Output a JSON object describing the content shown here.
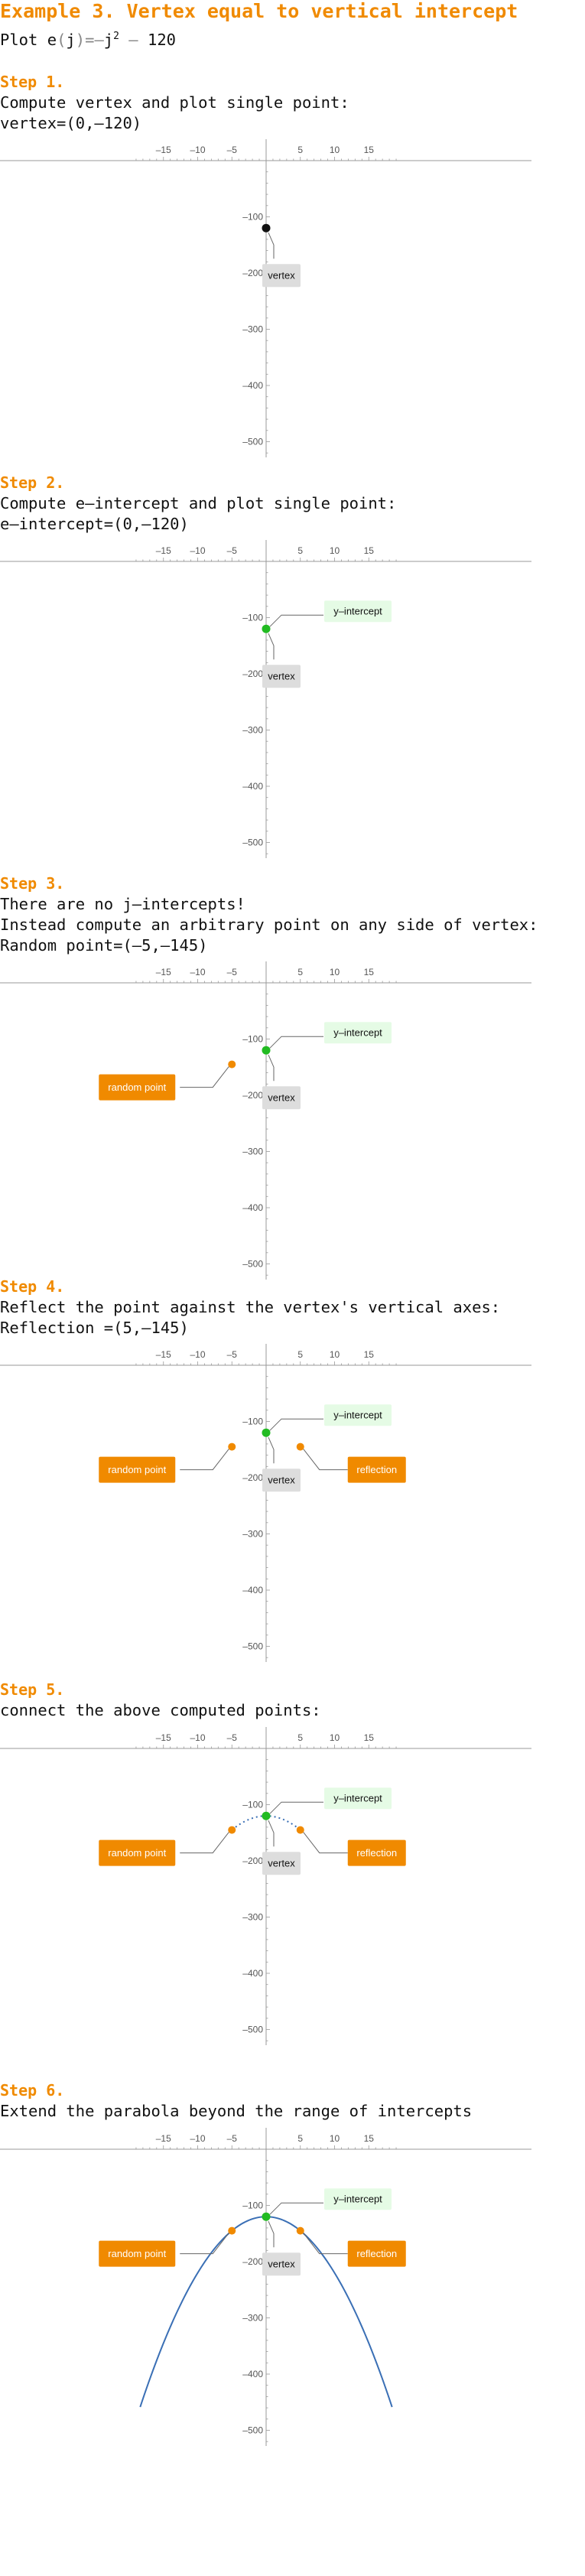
{
  "title": "Example 3. Vertex equal to vertical intercept",
  "intro": {
    "prefix": "Plot ",
    "fname": "e",
    "open": "(",
    "var": "j",
    "close": ")",
    "eq": "=",
    "neg": "–",
    "sq_base": "j",
    "exp": "2",
    "minus": " – ",
    "const": "120"
  },
  "labels": {
    "vertex": "vertex",
    "y_intercept": "y–intercept",
    "random_point": "random point",
    "reflection": "reflection"
  },
  "colors": {
    "title": "#f08a00",
    "vertex_point": "#111111",
    "intercept_point": "#22bb22",
    "random_point": "#f08a00",
    "curve": "#3a6fb5",
    "vertex_box": "#dddddd",
    "intercept_box": "#e5fbe5",
    "orange_box": "#f08a00"
  },
  "steps": [
    {
      "heading": "Step 1.",
      "lines": [
        "Compute vertex and plot single point:",
        "vertex=(0,–120)"
      ],
      "chart_data": {
        "type": "scatter",
        "xlim": [
          -19,
          19
        ],
        "ylim": [
          -525,
          5
        ],
        "xticks": [
          -15,
          -10,
          -5,
          5,
          10,
          15
        ],
        "yticks": [
          -100,
          -200,
          -300,
          -400,
          -500
        ],
        "points": [
          {
            "x": 0,
            "y": -120,
            "label": "vertex"
          }
        ],
        "curve": null
      }
    },
    {
      "heading": "Step 2.",
      "lines": [
        "Compute e–intercept and plot single point:",
        "e–intercept=(0,–120)"
      ],
      "chart_data": {
        "type": "scatter",
        "xlim": [
          -19,
          19
        ],
        "ylim": [
          -525,
          5
        ],
        "xticks": [
          -15,
          -10,
          -5,
          5,
          10,
          15
        ],
        "yticks": [
          -100,
          -200,
          -300,
          -400,
          -500
        ],
        "points": [
          {
            "x": 0,
            "y": -120,
            "label": "vertex, y–intercept"
          }
        ],
        "curve": null
      }
    },
    {
      "heading": "Step 3.",
      "lines": [
        "There are no j–intercepts!",
        "Instead compute an arbitrary point on any side of vertex:",
        "Random point=(–5,–145)"
      ],
      "chart_data": {
        "type": "scatter",
        "xlim": [
          -19,
          19
        ],
        "ylim": [
          -525,
          5
        ],
        "xticks": [
          -15,
          -10,
          -5,
          5,
          10,
          15
        ],
        "yticks": [
          -100,
          -200,
          -300,
          -400,
          -500
        ],
        "points": [
          {
            "x": 0,
            "y": -120,
            "label": "vertex, y–intercept"
          },
          {
            "x": -5,
            "y": -145,
            "label": "random point"
          }
        ],
        "curve": null
      }
    },
    {
      "heading": "Step 4.",
      "lines": [
        "Reflect the point against the vertex's vertical axes:",
        "Reflection =(5,–145)"
      ],
      "chart_data": {
        "type": "scatter",
        "xlim": [
          -19,
          19
        ],
        "ylim": [
          -525,
          5
        ],
        "xticks": [
          -15,
          -10,
          -5,
          5,
          10,
          15
        ],
        "yticks": [
          -100,
          -200,
          -300,
          -400,
          -500
        ],
        "points": [
          {
            "x": 0,
            "y": -120,
            "label": "vertex, y–intercept"
          },
          {
            "x": -5,
            "y": -145,
            "label": "random point"
          },
          {
            "x": 5,
            "y": -145,
            "label": "reflection"
          }
        ],
        "curve": null
      }
    },
    {
      "heading": "Step 5.",
      "lines": [
        "connect the above computed points:"
      ],
      "chart_data": {
        "type": "line",
        "xlim": [
          -19,
          19
        ],
        "ylim": [
          -525,
          5
        ],
        "xticks": [
          -15,
          -10,
          -5,
          5,
          10,
          15
        ],
        "yticks": [
          -100,
          -200,
          -300,
          -400,
          -500
        ],
        "points": [
          {
            "x": 0,
            "y": -120,
            "label": "vertex, y–intercept"
          },
          {
            "x": -5,
            "y": -145,
            "label": "random point"
          },
          {
            "x": 5,
            "y": -145,
            "label": "reflection"
          }
        ],
        "curve": {
          "function": "e(j) = -j^2 - 120",
          "domain": [
            -5,
            5
          ],
          "style": "dotted"
        }
      }
    },
    {
      "heading": "Step 6.",
      "lines": [
        "Extend the parabola beyond the range of intercepts"
      ],
      "chart_data": {
        "type": "line",
        "xlim": [
          -19,
          19
        ],
        "ylim": [
          -525,
          5
        ],
        "xticks": [
          -15,
          -10,
          -5,
          5,
          10,
          15
        ],
        "yticks": [
          -100,
          -200,
          -300,
          -400,
          -500
        ],
        "points": [
          {
            "x": 0,
            "y": -120,
            "label": "vertex, y–intercept"
          },
          {
            "x": -5,
            "y": -145,
            "label": "random point"
          },
          {
            "x": 5,
            "y": -145,
            "label": "reflection"
          }
        ],
        "curve": {
          "function": "e(j) = -j^2 - 120",
          "domain": [
            -18.4,
            18.4
          ],
          "style": "solid"
        }
      }
    }
  ]
}
